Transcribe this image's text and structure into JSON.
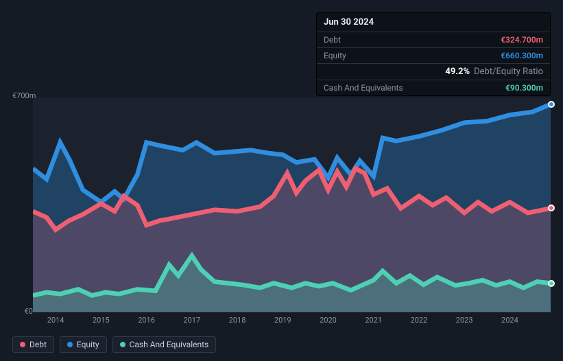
{
  "tooltip": {
    "date": "Jun 30 2024",
    "rows": [
      {
        "label": "Debt",
        "value": "€324.700m",
        "color": "#ef5f72"
      },
      {
        "label": "Equity",
        "value": "€660.300m",
        "color": "#2f8ee0"
      },
      {
        "ratio_pct": "49.2%",
        "ratio_label": "Debt/Equity Ratio"
      },
      {
        "label": "Cash And Equivalents",
        "value": "€90.300m",
        "color": "#4ed0b4"
      }
    ]
  },
  "chart": {
    "type": "area",
    "background": "#151b24",
    "plot_bg": "#1b222d",
    "grid_color": "#313a47",
    "x": {
      "min": 2013.5,
      "max": 2024.9,
      "ticks": [
        2014,
        2015,
        2016,
        2017,
        2018,
        2019,
        2020,
        2021,
        2022,
        2023,
        2024
      ]
    },
    "y": {
      "min": 0,
      "max": 700,
      "ticks": [
        {
          "v": 0,
          "label": "€0"
        },
        {
          "v": 700,
          "label": "€700m"
        }
      ]
    },
    "series": [
      {
        "name": "Equity",
        "color": "#2f8ee0",
        "fill": "#2f8ee0",
        "fill_opacity": 0.3,
        "stroke_width": 2.0,
        "data": [
          [
            2013.5,
            470
          ],
          [
            2013.8,
            435
          ],
          [
            2014.1,
            555
          ],
          [
            2014.3,
            500
          ],
          [
            2014.6,
            400
          ],
          [
            2015.0,
            360
          ],
          [
            2015.3,
            395
          ],
          [
            2015.5,
            370
          ],
          [
            2015.8,
            450
          ],
          [
            2016.0,
            555
          ],
          [
            2016.3,
            545
          ],
          [
            2016.8,
            530
          ],
          [
            2017.1,
            555
          ],
          [
            2017.5,
            520
          ],
          [
            2017.9,
            525
          ],
          [
            2018.3,
            530
          ],
          [
            2018.7,
            520
          ],
          [
            2019.0,
            515
          ],
          [
            2019.3,
            490
          ],
          [
            2019.7,
            500
          ],
          [
            2020.0,
            440
          ],
          [
            2020.2,
            505
          ],
          [
            2020.5,
            450
          ],
          [
            2020.7,
            495
          ],
          [
            2021.0,
            445
          ],
          [
            2021.2,
            570
          ],
          [
            2021.5,
            560
          ],
          [
            2022.0,
            575
          ],
          [
            2022.5,
            595
          ],
          [
            2023.0,
            620
          ],
          [
            2023.5,
            625
          ],
          [
            2024.0,
            645
          ],
          [
            2024.5,
            655
          ],
          [
            2024.9,
            680
          ]
        ]
      },
      {
        "name": "Debt",
        "color": "#ef5f72",
        "fill": "#ef5f72",
        "fill_opacity": 0.22,
        "stroke_width": 2.0,
        "data": [
          [
            2013.5,
            330
          ],
          [
            2013.8,
            310
          ],
          [
            2014.0,
            270
          ],
          [
            2014.3,
            300
          ],
          [
            2014.6,
            320
          ],
          [
            2015.0,
            355
          ],
          [
            2015.3,
            330
          ],
          [
            2015.5,
            380
          ],
          [
            2015.8,
            350
          ],
          [
            2016.0,
            285
          ],
          [
            2016.3,
            300
          ],
          [
            2016.5,
            305
          ],
          [
            2017.0,
            320
          ],
          [
            2017.5,
            335
          ],
          [
            2018.0,
            330
          ],
          [
            2018.5,
            345
          ],
          [
            2018.8,
            380
          ],
          [
            2019.1,
            455
          ],
          [
            2019.3,
            390
          ],
          [
            2019.5,
            430
          ],
          [
            2019.8,
            465
          ],
          [
            2020.0,
            400
          ],
          [
            2020.2,
            460
          ],
          [
            2020.4,
            410
          ],
          [
            2020.6,
            470
          ],
          [
            2020.8,
            455
          ],
          [
            2021.0,
            385
          ],
          [
            2021.3,
            405
          ],
          [
            2021.6,
            340
          ],
          [
            2022.0,
            380
          ],
          [
            2022.3,
            350
          ],
          [
            2022.6,
            375
          ],
          [
            2023.0,
            325
          ],
          [
            2023.3,
            360
          ],
          [
            2023.6,
            330
          ],
          [
            2024.0,
            360
          ],
          [
            2024.4,
            325
          ],
          [
            2024.9,
            340
          ]
        ]
      },
      {
        "name": "Cash And Equivalents",
        "color": "#4ed0b4",
        "fill": "#4ed0b4",
        "fill_opacity": 0.28,
        "stroke_width": 2.0,
        "data": [
          [
            2013.5,
            55
          ],
          [
            2013.8,
            65
          ],
          [
            2014.1,
            60
          ],
          [
            2014.5,
            75
          ],
          [
            2014.8,
            55
          ],
          [
            2015.1,
            65
          ],
          [
            2015.4,
            60
          ],
          [
            2015.8,
            75
          ],
          [
            2016.2,
            70
          ],
          [
            2016.5,
            155
          ],
          [
            2016.7,
            120
          ],
          [
            2017.0,
            185
          ],
          [
            2017.2,
            140
          ],
          [
            2017.5,
            100
          ],
          [
            2017.8,
            95
          ],
          [
            2018.1,
            90
          ],
          [
            2018.5,
            80
          ],
          [
            2018.8,
            95
          ],
          [
            2019.2,
            80
          ],
          [
            2019.5,
            95
          ],
          [
            2019.8,
            85
          ],
          [
            2020.1,
            95
          ],
          [
            2020.5,
            72
          ],
          [
            2020.8,
            92
          ],
          [
            2021.0,
            105
          ],
          [
            2021.2,
            135
          ],
          [
            2021.5,
            95
          ],
          [
            2021.8,
            120
          ],
          [
            2022.1,
            90
          ],
          [
            2022.4,
            115
          ],
          [
            2022.8,
            88
          ],
          [
            2023.1,
            95
          ],
          [
            2023.4,
            105
          ],
          [
            2023.7,
            88
          ],
          [
            2024.0,
            100
          ],
          [
            2024.3,
            80
          ],
          [
            2024.6,
            100
          ],
          [
            2024.9,
            95
          ]
        ]
      }
    ],
    "legend": [
      {
        "label": "Debt",
        "color": "#ef5f72"
      },
      {
        "label": "Equity",
        "color": "#2f8ee0"
      },
      {
        "label": "Cash And Equivalents",
        "color": "#4ed0b4"
      }
    ]
  }
}
